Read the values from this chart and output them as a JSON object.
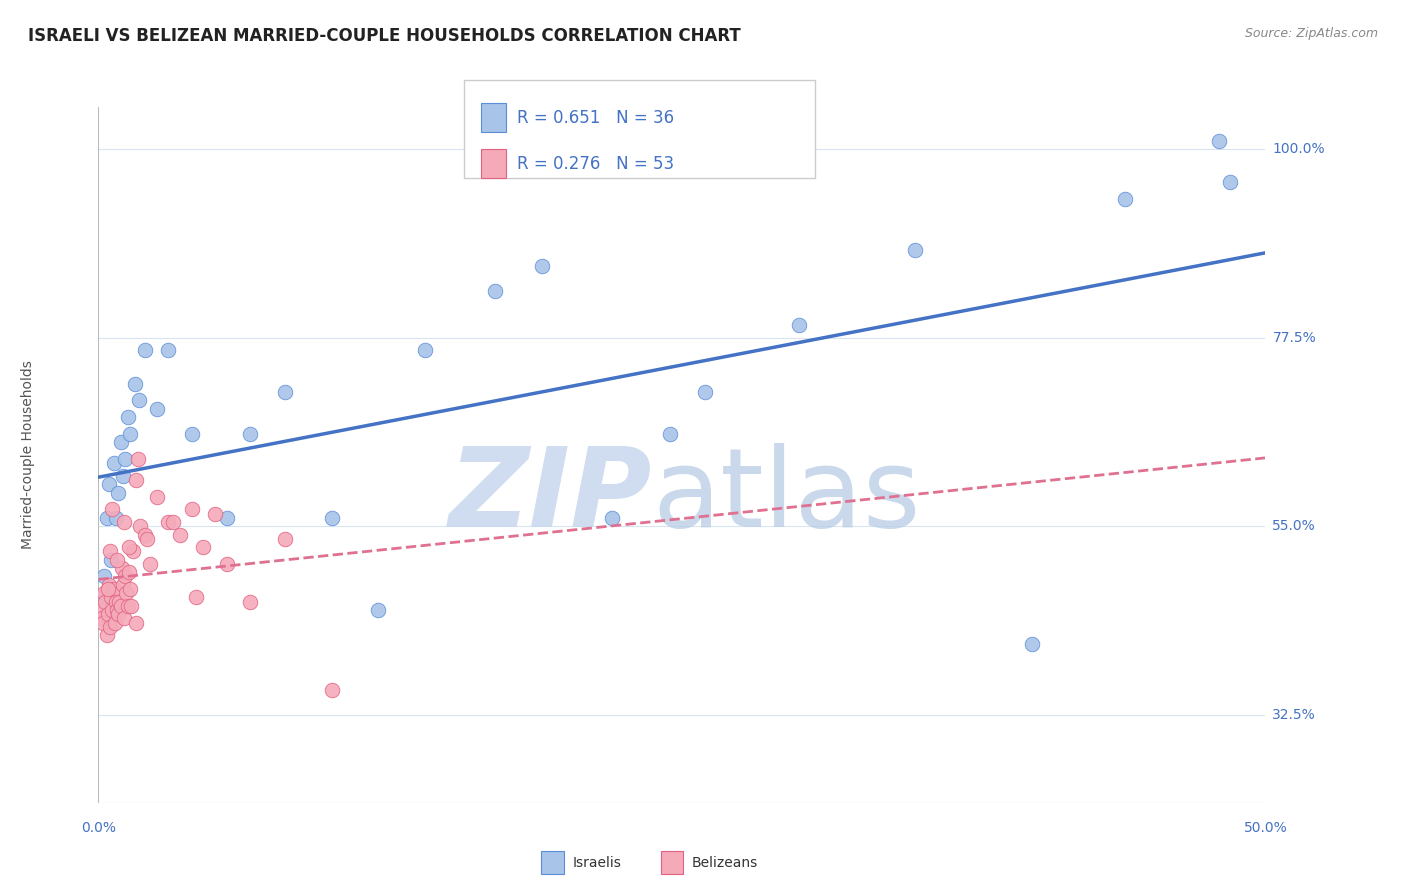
{
  "title": "ISRAELI VS BELIZEAN MARRIED-COUPLE HOUSEHOLDS CORRELATION CHART",
  "source": "Source: ZipAtlas.com",
  "ylabel": "Married-couple Households",
  "yticks": [
    32.5,
    55.0,
    77.5,
    100.0
  ],
  "ytick_labels": [
    "32.5%",
    "55.0%",
    "77.5%",
    "100.0%"
  ],
  "xmin": 0.0,
  "xmax": 50.0,
  "ymin": 22.0,
  "ymax": 105.0,
  "israeli_R": 0.651,
  "israeli_N": 36,
  "belizean_R": 0.276,
  "belizean_N": 53,
  "israeli_color": "#a8c4e8",
  "belizean_color": "#f5aaba",
  "israeli_edge_color": "#5b8dd9",
  "belizean_edge_color": "#e06080",
  "israeli_line_color": "#4472c4",
  "belizean_line_color": "#e07090",
  "legend_text_color": "#4472c4",
  "axis_label_color": "#4472c4",
  "grid_color": "#d8e4f0",
  "watermark_zip_color": "#c8d8ee",
  "watermark_atlas_color": "#b8cce4",
  "israeli_x": [
    0.15,
    0.25,
    0.35,
    0.45,
    0.55,
    0.65,
    0.75,
    0.85,
    0.95,
    1.05,
    1.15,
    1.25,
    1.35,
    1.55,
    1.75,
    2.0,
    2.5,
    3.0,
    4.0,
    5.5,
    6.5,
    8.0,
    10.0,
    12.0,
    14.0,
    17.0,
    19.0,
    22.0,
    24.5,
    26.0,
    30.0,
    35.0,
    40.0,
    44.0,
    48.0,
    48.5
  ],
  "israeli_y": [
    46.5,
    49.0,
    56.0,
    60.0,
    51.0,
    62.5,
    56.0,
    59.0,
    65.0,
    61.0,
    63.0,
    68.0,
    66.0,
    72.0,
    70.0,
    76.0,
    69.0,
    76.0,
    66.0,
    56.0,
    66.0,
    71.0,
    56.0,
    45.0,
    76.0,
    83.0,
    86.0,
    56.0,
    66.0,
    71.0,
    79.0,
    88.0,
    41.0,
    94.0,
    101.0,
    96.0
  ],
  "belizean_x": [
    0.1,
    0.15,
    0.2,
    0.25,
    0.3,
    0.35,
    0.4,
    0.45,
    0.5,
    0.55,
    0.6,
    0.65,
    0.7,
    0.75,
    0.8,
    0.85,
    0.9,
    0.95,
    1.0,
    1.05,
    1.1,
    1.15,
    1.2,
    1.25,
    1.3,
    1.35,
    1.4,
    1.5,
    1.6,
    1.7,
    1.8,
    2.0,
    2.2,
    2.5,
    3.0,
    3.5,
    4.0,
    4.5,
    5.0,
    5.5,
    6.5,
    8.0,
    3.2,
    0.5,
    0.6,
    0.8,
    1.1,
    1.3,
    1.6,
    2.1,
    4.2,
    0.4,
    10.0
  ],
  "belizean_y": [
    45.0,
    44.0,
    43.5,
    47.0,
    46.0,
    42.0,
    44.5,
    48.0,
    43.0,
    46.5,
    45.0,
    47.5,
    43.5,
    46.0,
    45.0,
    44.5,
    46.0,
    45.5,
    50.0,
    48.0,
    44.0,
    49.0,
    47.0,
    45.5,
    49.5,
    47.5,
    45.5,
    52.0,
    43.5,
    63.0,
    55.0,
    54.0,
    50.5,
    58.5,
    55.5,
    54.0,
    57.0,
    52.5,
    56.5,
    50.5,
    46.0,
    53.5,
    55.5,
    52.0,
    57.0,
    51.0,
    55.5,
    52.5,
    60.5,
    53.5,
    46.5,
    47.5,
    35.5
  ]
}
